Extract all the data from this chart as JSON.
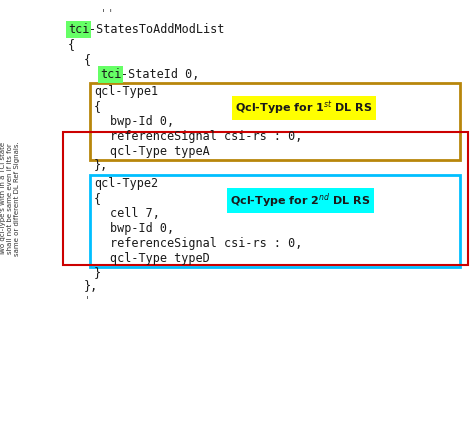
{
  "bg_color": "#ffffff",
  "tci_highlight_color": "#66ff66",
  "box1_color": "#b8860b",
  "box1_label_bg": "#ffff00",
  "box2_color": "#00bfff",
  "box2_label_bg": "#00ffff",
  "red_box_color": "#cc0000",
  "code_fontsize": 8.5,
  "label_fontsize": 8.0,
  "side_text_lines": [
    "Two qcl-Type's with in a TCI state",
    "shall not be same even if its for",
    "same or different DL Ref Signals."
  ]
}
